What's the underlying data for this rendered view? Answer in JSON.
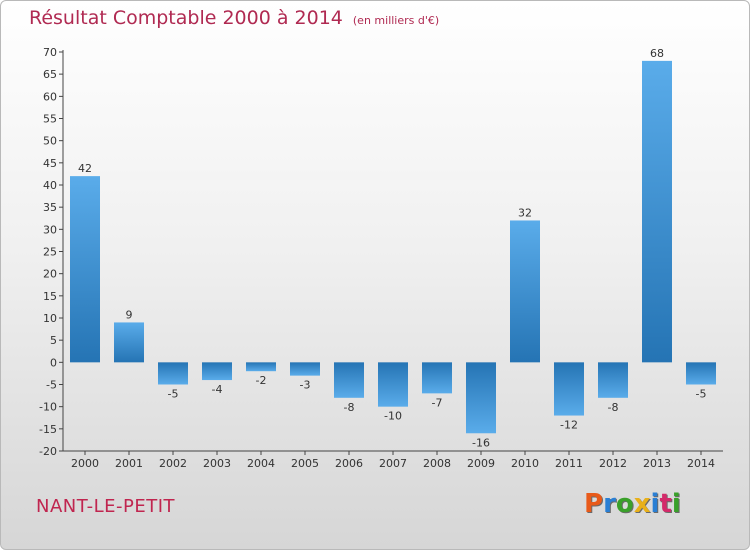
{
  "title": "Résultat Comptable 2000 à 2014",
  "subtitle": "(en milliers d'€)",
  "commune": "NANT-LE-PETIT",
  "logo": [
    "P",
    "r",
    "o",
    "x",
    "i",
    "t",
    "i"
  ],
  "logo_colors": [
    "#e85a1a",
    "#2a7fd4",
    "#3aa02a",
    "#e8b01a",
    "#2a7fd4",
    "#d42a6a",
    "#3aa02a"
  ],
  "colors": {
    "bar_dark": "#2574b4",
    "bar_light": "#5aacea",
    "title": "#b02a52"
  },
  "chart_data": {
    "type": "bar",
    "categories": [
      "2000",
      "2001",
      "2002",
      "2003",
      "2004",
      "2005",
      "2006",
      "2007",
      "2008",
      "2009",
      "2010",
      "2011",
      "2012",
      "2013",
      "2014"
    ],
    "values": [
      42,
      9,
      -5,
      -4,
      -2,
      -3,
      -8,
      -10,
      -7,
      -16,
      32,
      -12,
      -8,
      68,
      -5
    ],
    "ylim": [
      -20,
      70
    ],
    "yticks": [
      70,
      65,
      60,
      55,
      50,
      45,
      40,
      35,
      30,
      25,
      20,
      15,
      10,
      5,
      0,
      -5,
      -10,
      -15,
      -20
    ],
    "grid": false,
    "title": "Résultat Comptable 2000 à 2014",
    "ylabel": "(en milliers d'€)"
  }
}
